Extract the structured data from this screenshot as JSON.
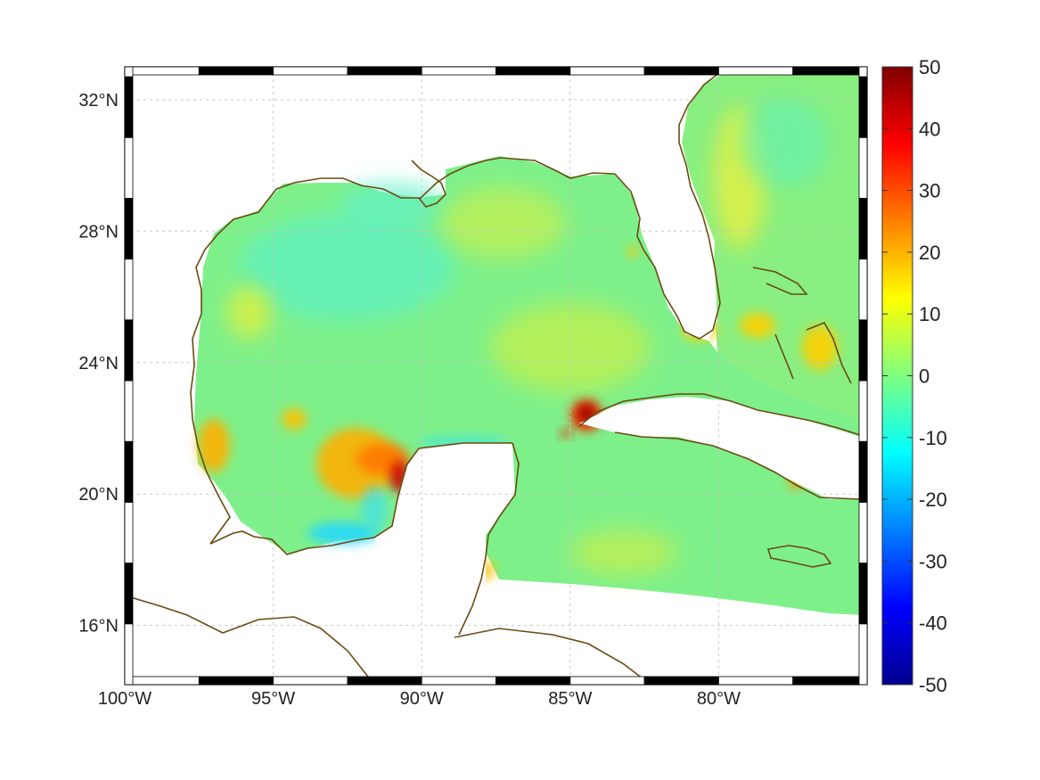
{
  "map": {
    "lon_range": [
      -100,
      -75
    ],
    "lat_range": [
      14.2,
      33
    ],
    "lon_ticks": [
      {
        "value": -100,
        "label": "100°W"
      },
      {
        "value": -95,
        "label": "95°W"
      },
      {
        "value": -90,
        "label": "90°W"
      },
      {
        "value": -85,
        "label": "85°W"
      },
      {
        "value": -80,
        "label": "80°W"
      }
    ],
    "lat_ticks": [
      {
        "value": 32,
        "label": "32°N"
      },
      {
        "value": 28,
        "label": "28°N"
      },
      {
        "value": 24,
        "label": "24°N"
      },
      {
        "value": 20,
        "label": "20°N"
      },
      {
        "value": 16,
        "label": "16°N"
      }
    ],
    "grid": true,
    "frame_style": "alternating black and white border",
    "coastline_color": "#6b4a12",
    "field_colormap": "jet",
    "land_color": "#ffffff"
  },
  "colorbar": {
    "min": -50,
    "max": 50,
    "ticks": [
      "50",
      "40",
      "30",
      "20",
      "10",
      "0",
      "-10",
      "-20",
      "-30",
      "-40",
      "-50"
    ]
  }
}
